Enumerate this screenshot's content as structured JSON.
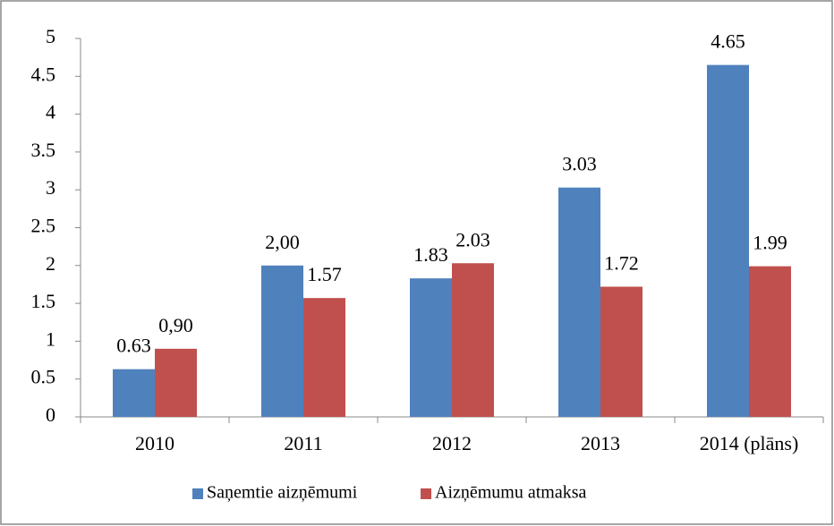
{
  "chart_data": {
    "type": "bar",
    "categories": [
      "2010",
      "2011",
      "2012",
      "2013",
      "2014 (plāns)"
    ],
    "series": [
      {
        "name": "Saņemtie aizņēmumi",
        "color": "#4f81bd",
        "values": [
          0.63,
          2.0,
          1.83,
          3.03,
          4.65
        ],
        "value_labels": [
          "0.63",
          "2,00",
          "1.83",
          "3.03",
          "4.65"
        ]
      },
      {
        "name": "Aizņēmumu atmaksa",
        "color": "#c0504d",
        "values": [
          0.9,
          1.57,
          2.03,
          1.72,
          1.99
        ],
        "value_labels": [
          "0,90",
          "1.57",
          "2.03",
          "1.72",
          "1.99"
        ]
      }
    ],
    "ylim": [
      0,
      5
    ],
    "yticks": [
      0,
      0.5,
      1,
      1.5,
      2,
      2.5,
      3,
      3.5,
      4,
      4.5,
      5
    ],
    "grid": false,
    "legend": "bottom"
  }
}
